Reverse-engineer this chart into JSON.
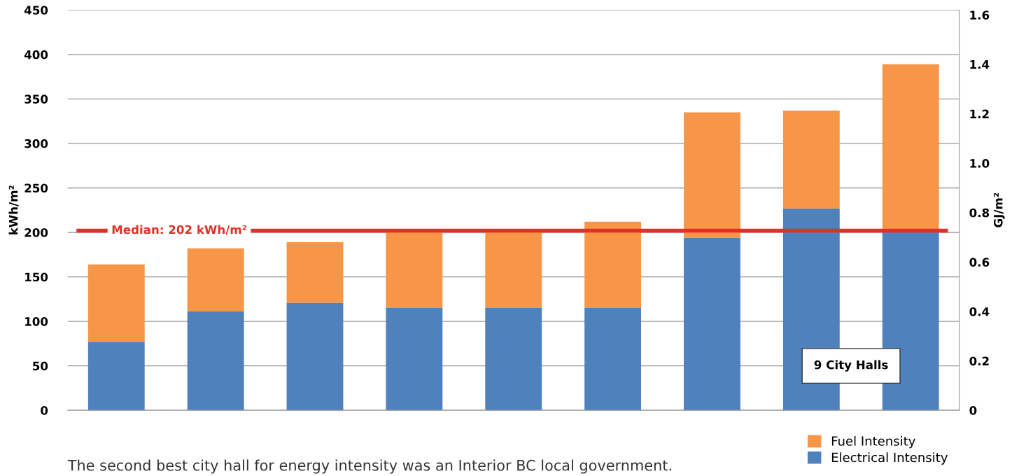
{
  "chart_data": {
    "type": "bar",
    "stacked": true,
    "ylabel": "kWh/m²",
    "y2label": "GJ/m²",
    "categories": [
      null,
      null,
      null,
      null,
      null,
      null,
      null,
      null,
      null
    ],
    "series": [
      {
        "name": "Electrical Intensity",
        "color": "#4f81bd",
        "values": [
          77,
          111,
          121,
          115,
          115,
          115,
          194,
          227,
          201
        ]
      },
      {
        "name": "Fuel Intensity",
        "color": "#f79646",
        "values": [
          87,
          71,
          68,
          87,
          87,
          97,
          141,
          110,
          188
        ]
      }
    ],
    "ylim": [
      0,
      450
    ],
    "yticks": [
      0,
      50,
      100,
      150,
      200,
      250,
      300,
      350,
      400,
      450
    ],
    "y2lim": [
      0,
      1.62
    ],
    "y2ticks": [
      0,
      {
        "value": 0.2,
        "label": "0.2"
      },
      {
        "value": 0.4,
        "label": "0.4"
      },
      {
        "value": 0.6,
        "label": "0.6"
      },
      {
        "value": 0.8,
        "label": "0.8"
      },
      {
        "value": 1.0,
        "label": "1.0"
      },
      {
        "value": 1.2,
        "label": "1.2"
      },
      {
        "value": 1.4,
        "label": "1.4"
      },
      {
        "value": 1.6,
        "label": "1.6"
      }
    ],
    "ref_lines": [
      {
        "axis": "y",
        "value": 202,
        "label": "Median: 202 kWh/m²",
        "color": "#e03127"
      }
    ],
    "annotations": [
      "9 City Halls",
      "The second best city hall for energy intensity was an Interior BC local government."
    ],
    "grid": "y",
    "legend": "bottom right"
  }
}
